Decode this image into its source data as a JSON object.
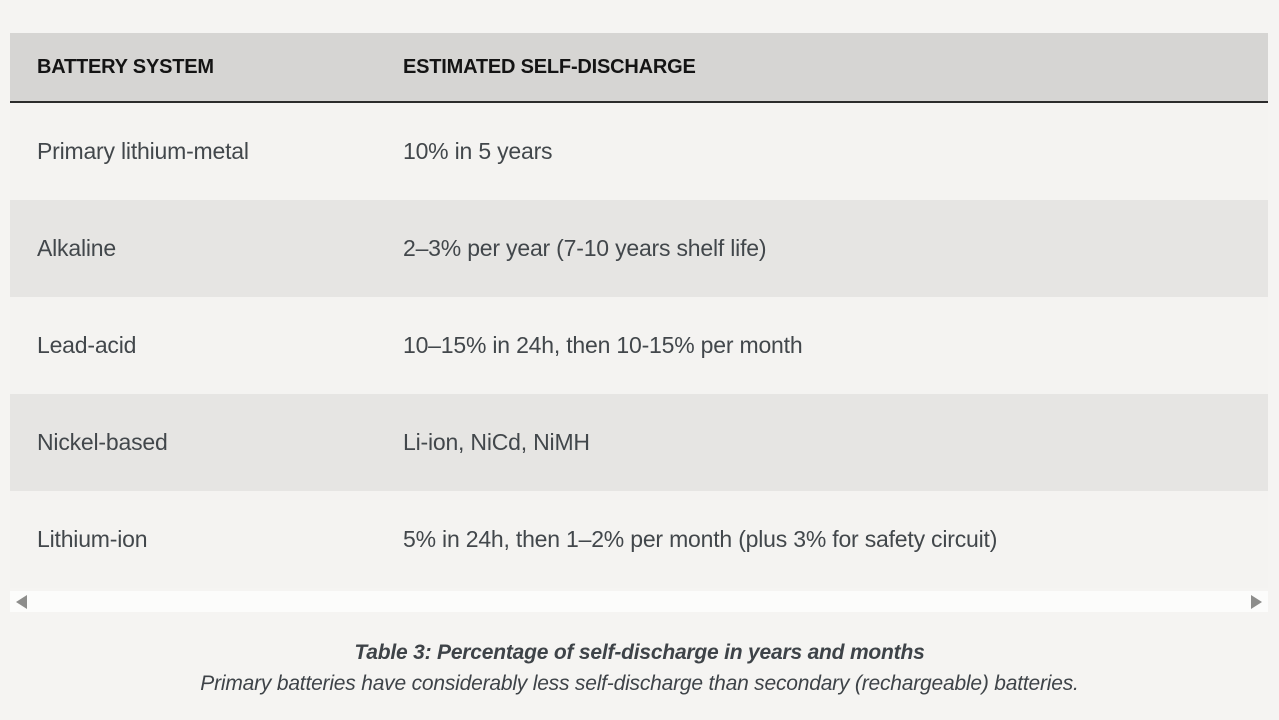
{
  "table": {
    "header": {
      "col1": "BATTERY SYSTEM",
      "col2": "ESTIMATED SELF-DISCHARGE"
    },
    "rows": [
      {
        "system": "Primary lithium-metal",
        "discharge": "10% in 5 years"
      },
      {
        "system": "Alkaline",
        "discharge": "2–3% per year (7-10 years shelf life)"
      },
      {
        "system": "Lead-acid",
        "discharge": "10–15% in 24h, then 10-15% per month"
      },
      {
        "system": "Nickel-based",
        "discharge": "Li-ion, NiCd, NiMH"
      },
      {
        "system": "Lithium-ion",
        "discharge": "5% in 24h, then 1–2% per month (plus 3% for safety circuit)"
      }
    ]
  },
  "scrollbar": {
    "left_icon": "scroll-left-arrow",
    "right_icon": "scroll-right-arrow"
  },
  "caption": {
    "title": "Table 3: Percentage of self-discharge in years and months",
    "subtitle": "Primary batteries have considerably less self-discharge than secondary (rechargeable) batteries."
  },
  "colors": {
    "page_bg": "#f5f4f2",
    "header_bg": "#d6d5d3",
    "header_border": "#2b2b2b",
    "header_text": "#141414",
    "row_light": "#f4f3f1",
    "row_dark": "#e6e5e3",
    "body_text": "#42474b",
    "caption_text": "#3e4348",
    "scrollbar_track": "#fcfcfb",
    "scrollbar_arrow": "#8d8d8b"
  }
}
